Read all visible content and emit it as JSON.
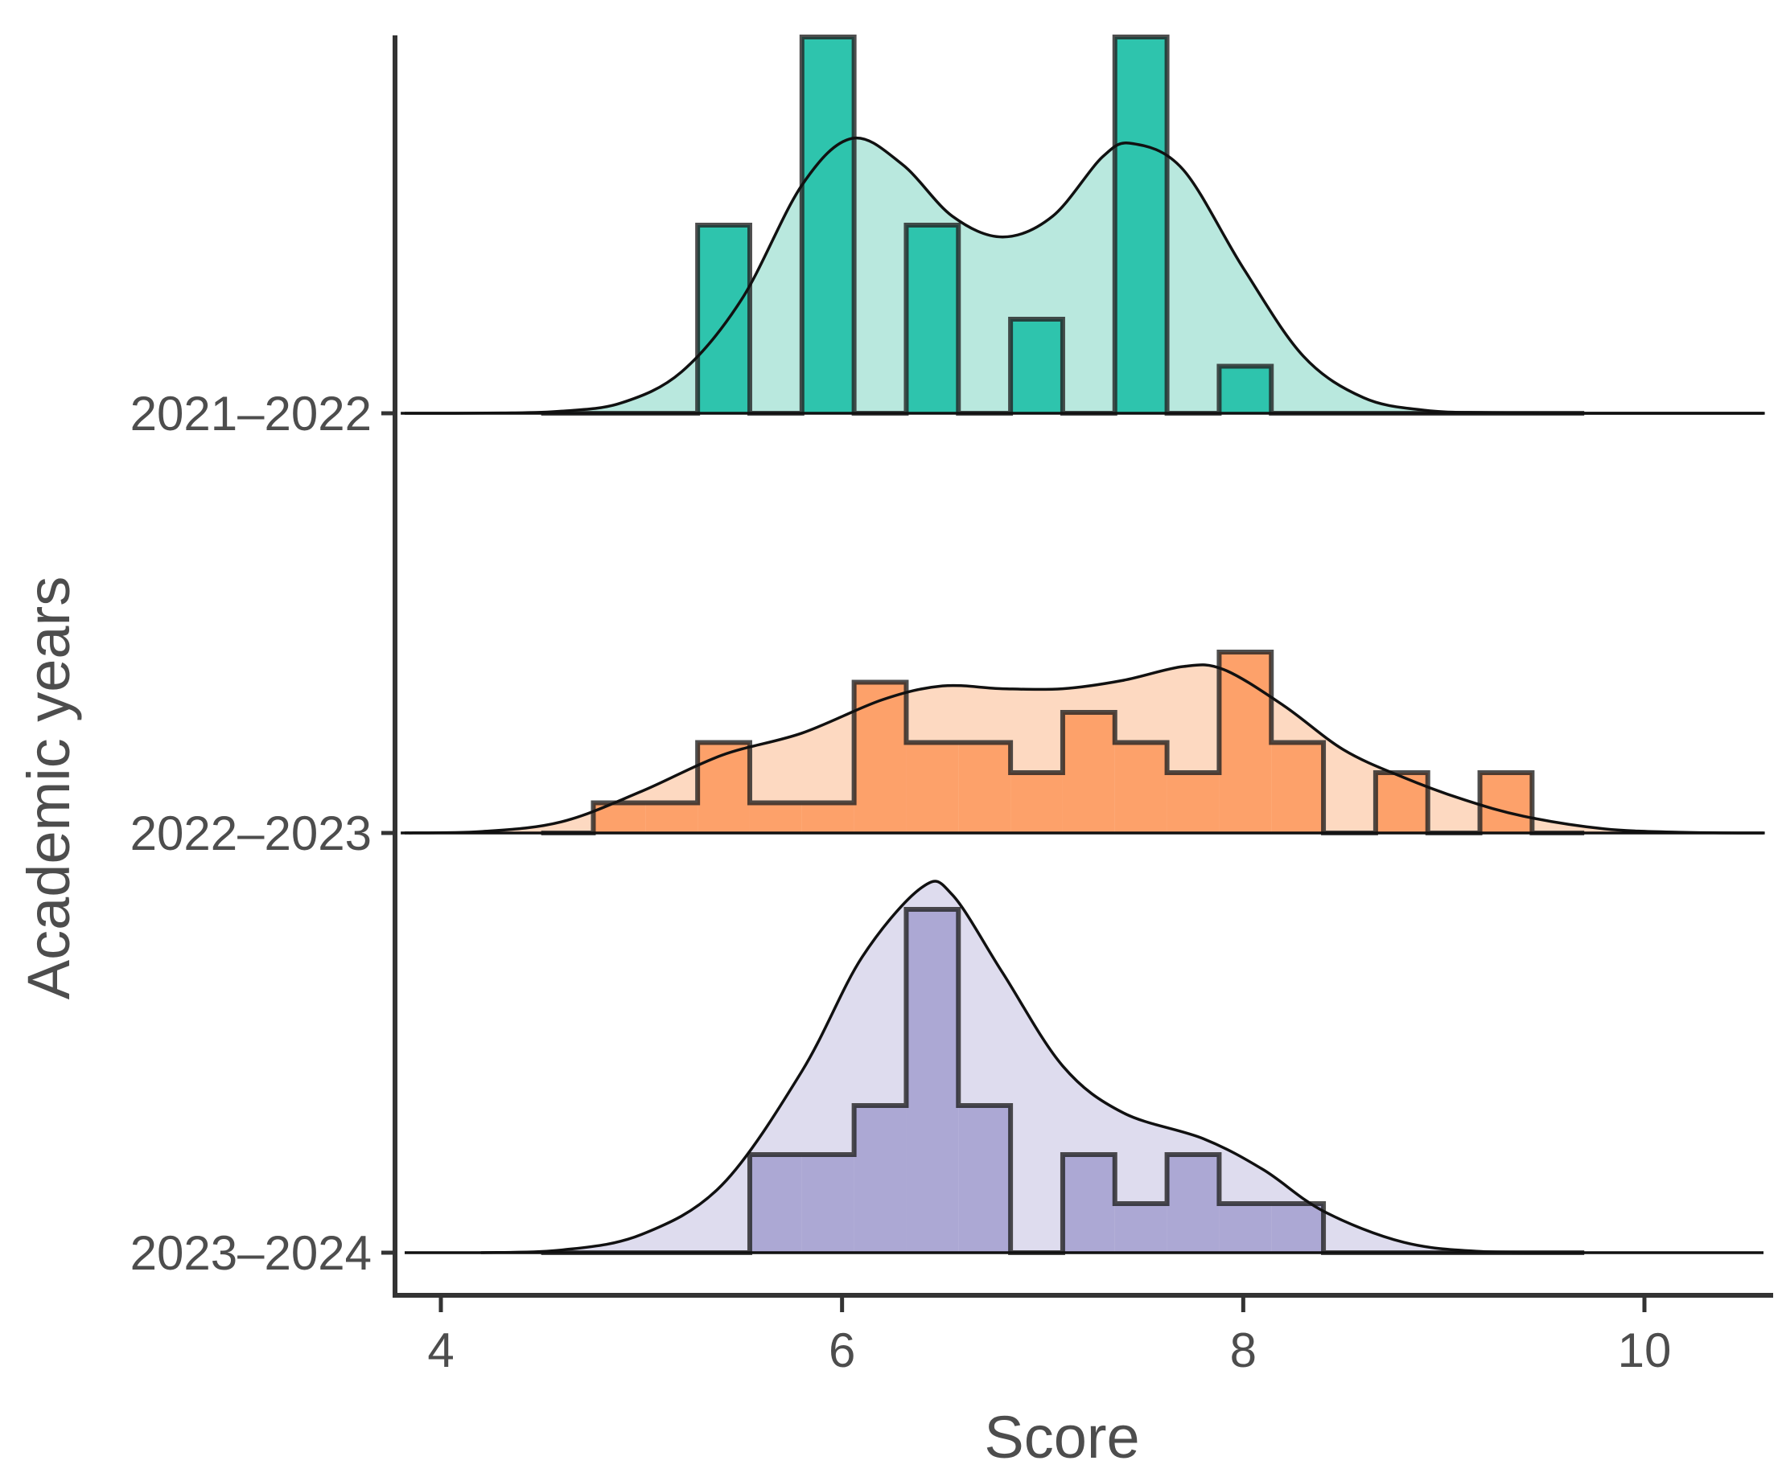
{
  "chart_data": {
    "type": "ridgeline-histogram-density",
    "xlabel": "Score",
    "ylabel": "Academic years",
    "xlim": [
      3.8,
      10.6
    ],
    "xticks": [
      4,
      6,
      8,
      10
    ],
    "bin_width": 0.26,
    "grid": false,
    "legend": "none",
    "series": [
      {
        "name": "2021–2022",
        "fill_color": "#1abc9c",
        "bar_color": "#2ec4ad",
        "density_color": "#b9e8de",
        "hist_edges": [
          4.5,
          4.76,
          5.02,
          5.28,
          5.54,
          5.8,
          6.06,
          6.32,
          6.58,
          6.84,
          7.1,
          7.36,
          7.62,
          7.88,
          8.14,
          8.4,
          8.66,
          8.92,
          9.18,
          9.44,
          9.7
        ],
        "hist_counts": [
          0,
          0,
          0,
          4,
          0,
          8,
          0,
          4,
          0,
          2,
          0,
          8,
          0,
          1,
          0,
          0,
          0,
          0,
          0,
          0
        ],
        "density_x": [
          3.8,
          4.3,
          4.6,
          4.9,
          5.2,
          5.5,
          5.8,
          6.05,
          6.3,
          6.55,
          6.8,
          7.05,
          7.3,
          7.45,
          7.7,
          8.0,
          8.3,
          8.6,
          8.9,
          9.2,
          9.6,
          10.6
        ],
        "density_y": [
          0,
          0.005,
          0.04,
          0.2,
          0.8,
          2.2,
          4.4,
          5.3,
          4.8,
          3.8,
          3.4,
          3.8,
          4.95,
          5.2,
          4.7,
          2.8,
          1.1,
          0.3,
          0.06,
          0.01,
          0,
          0
        ]
      },
      {
        "name": "2022–2023",
        "fill_color": "#fc8d59",
        "bar_color": "#fda16a",
        "density_color": "#fdd9c1",
        "hist_edges": [
          4.5,
          4.76,
          5.02,
          5.28,
          5.54,
          5.8,
          6.06,
          6.32,
          6.58,
          6.84,
          7.1,
          7.36,
          7.62,
          7.88,
          8.14,
          8.4,
          8.66,
          8.92,
          9.18,
          9.44,
          9.7
        ],
        "hist_counts": [
          0,
          1,
          1,
          3,
          1,
          1,
          5,
          3,
          3,
          2,
          4,
          3,
          2,
          6,
          3,
          0,
          2,
          0,
          2,
          0
        ],
        "density_x": [
          3.8,
          4.2,
          4.6,
          5.0,
          5.4,
          5.8,
          6.2,
          6.5,
          6.8,
          7.1,
          7.4,
          7.7,
          7.9,
          8.2,
          8.5,
          8.8,
          9.1,
          9.4,
          9.8,
          10.2,
          10.6
        ],
        "density_y": [
          0,
          0.05,
          0.4,
          1.5,
          2.8,
          3.6,
          4.8,
          5.3,
          5.2,
          5.2,
          5.5,
          6.0,
          5.9,
          4.6,
          3.0,
          2.0,
          1.2,
          0.6,
          0.15,
          0.02,
          0
        ]
      },
      {
        "name": "2023–2024",
        "fill_color": "#8e86c4",
        "bar_color": "#aca8d4",
        "density_color": "#dedcee",
        "hist_edges": [
          4.5,
          4.76,
          5.02,
          5.28,
          5.54,
          5.8,
          6.06,
          6.32,
          6.58,
          6.84,
          7.1,
          7.36,
          7.62,
          7.88,
          8.14,
          8.4,
          8.66,
          8.92,
          9.18,
          9.44,
          9.7
        ],
        "hist_counts": [
          0,
          0,
          0,
          0,
          2,
          2,
          3,
          7,
          3,
          0,
          2,
          1,
          2,
          1,
          1,
          0,
          0,
          0,
          0,
          0
        ],
        "density_x": [
          4.2,
          4.6,
          5.0,
          5.4,
          5.8,
          6.1,
          6.4,
          6.55,
          6.8,
          7.1,
          7.4,
          7.8,
          8.1,
          8.4,
          8.8,
          9.2,
          9.7
        ],
        "density_y": [
          0,
          0.05,
          0.35,
          1.3,
          3.5,
          5.7,
          7.05,
          6.9,
          5.4,
          3.6,
          2.7,
          2.2,
          1.6,
          0.8,
          0.2,
          0.02,
          0
        ]
      }
    ]
  }
}
